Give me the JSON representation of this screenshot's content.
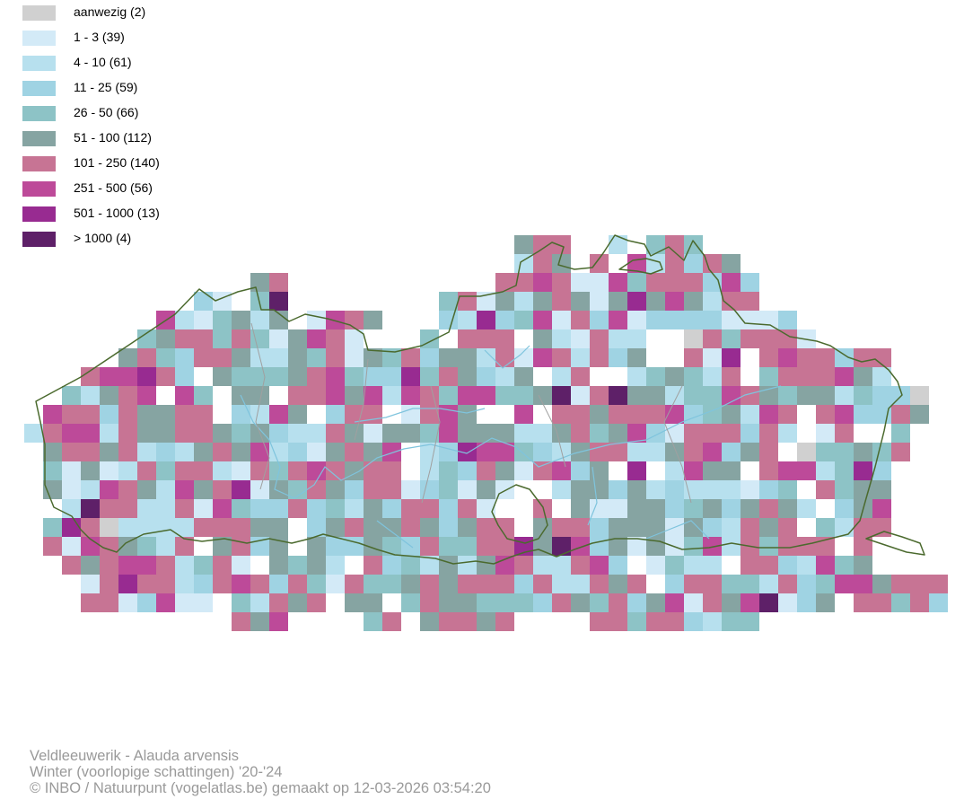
{
  "legend": [
    {
      "label": "aanwezig (2)",
      "color": "#d0d0d0"
    },
    {
      "label": "1 - 3 (39)",
      "color": "#d3eaf7"
    },
    {
      "label": "4 - 10 (61)",
      "color": "#b7e0ee"
    },
    {
      "label": "11 - 25 (59)",
      "color": "#9fd3e3"
    },
    {
      "label": "26 - 50 (66)",
      "color": "#8dc3c6"
    },
    {
      "label": "51 - 100 (112)",
      "color": "#86a4a2"
    },
    {
      "label": "101 - 250 (140)",
      "color": "#c77494"
    },
    {
      "label": "251 - 500 (56)",
      "color": "#bd4a99"
    },
    {
      "label": "501 - 1000 (13)",
      "color": "#982b91"
    },
    {
      "label": "> 1000 (4)",
      "color": "#5e2068"
    }
  ],
  "map_colors": {
    "border": "#4b6a2e",
    "river": "#7fc4dd",
    "internal_boundary": "#a0a0a0"
  },
  "caption": {
    "line1": "Veldleeuwerik - Alauda arvensis",
    "line2": "Winter (voorlopige schattingen) '20-'24",
    "line3": "© INBO / Natuurpunt (vogelatlas.be) gemaakt op 12-03-2026 03:54:20"
  }
}
